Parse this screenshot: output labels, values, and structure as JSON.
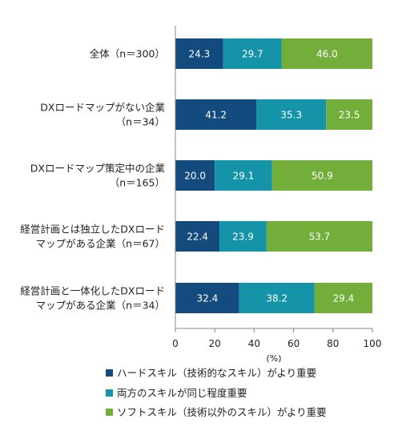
{
  "chart_data": {
    "type": "bar",
    "orientation": "horizontal",
    "stacked": true,
    "title": "",
    "xlabel": "(%)",
    "ylabel": "",
    "xlim": [
      0,
      100
    ],
    "xticks": [
      "0",
      "20",
      "40",
      "60",
      "80",
      "100"
    ],
    "categories": [
      [
        "全体（n＝300）"
      ],
      [
        "DXロードマップがない企業",
        "（n＝34）"
      ],
      [
        "DXロードマップ策定中の企業",
        "（n＝165）"
      ],
      [
        "経営計画とは独立したDXロード",
        "マップがある企業（n＝67）"
      ],
      [
        "経営計画と一体化したDXロード",
        "マップがある企業（n＝34）"
      ]
    ],
    "series": [
      {
        "name": "ハードスキル（技術的なスキル）がより重要",
        "color": "#134b7e",
        "values": [
          24.3,
          41.2,
          20.0,
          22.4,
          32.4
        ],
        "labels": [
          "24.3",
          "41.2",
          "20.0",
          "22.4",
          "32.4"
        ]
      },
      {
        "name": "両方のスキルが同じ程度重要",
        "color": "#1593a8",
        "values": [
          29.7,
          35.3,
          29.1,
          23.9,
          38.2
        ],
        "labels": [
          "29.7",
          "35.3",
          "29.1",
          "23.9",
          "38.2"
        ]
      },
      {
        "name": "ソフトスキル（技術以外のスキル）がより重要",
        "color": "#73ad3a",
        "values": [
          46.0,
          23.5,
          50.9,
          53.7,
          29.4
        ],
        "labels": [
          "46.0",
          "23.5",
          "50.9",
          "53.7",
          "29.4"
        ]
      }
    ],
    "grid": false,
    "legend_position": "bottom"
  }
}
